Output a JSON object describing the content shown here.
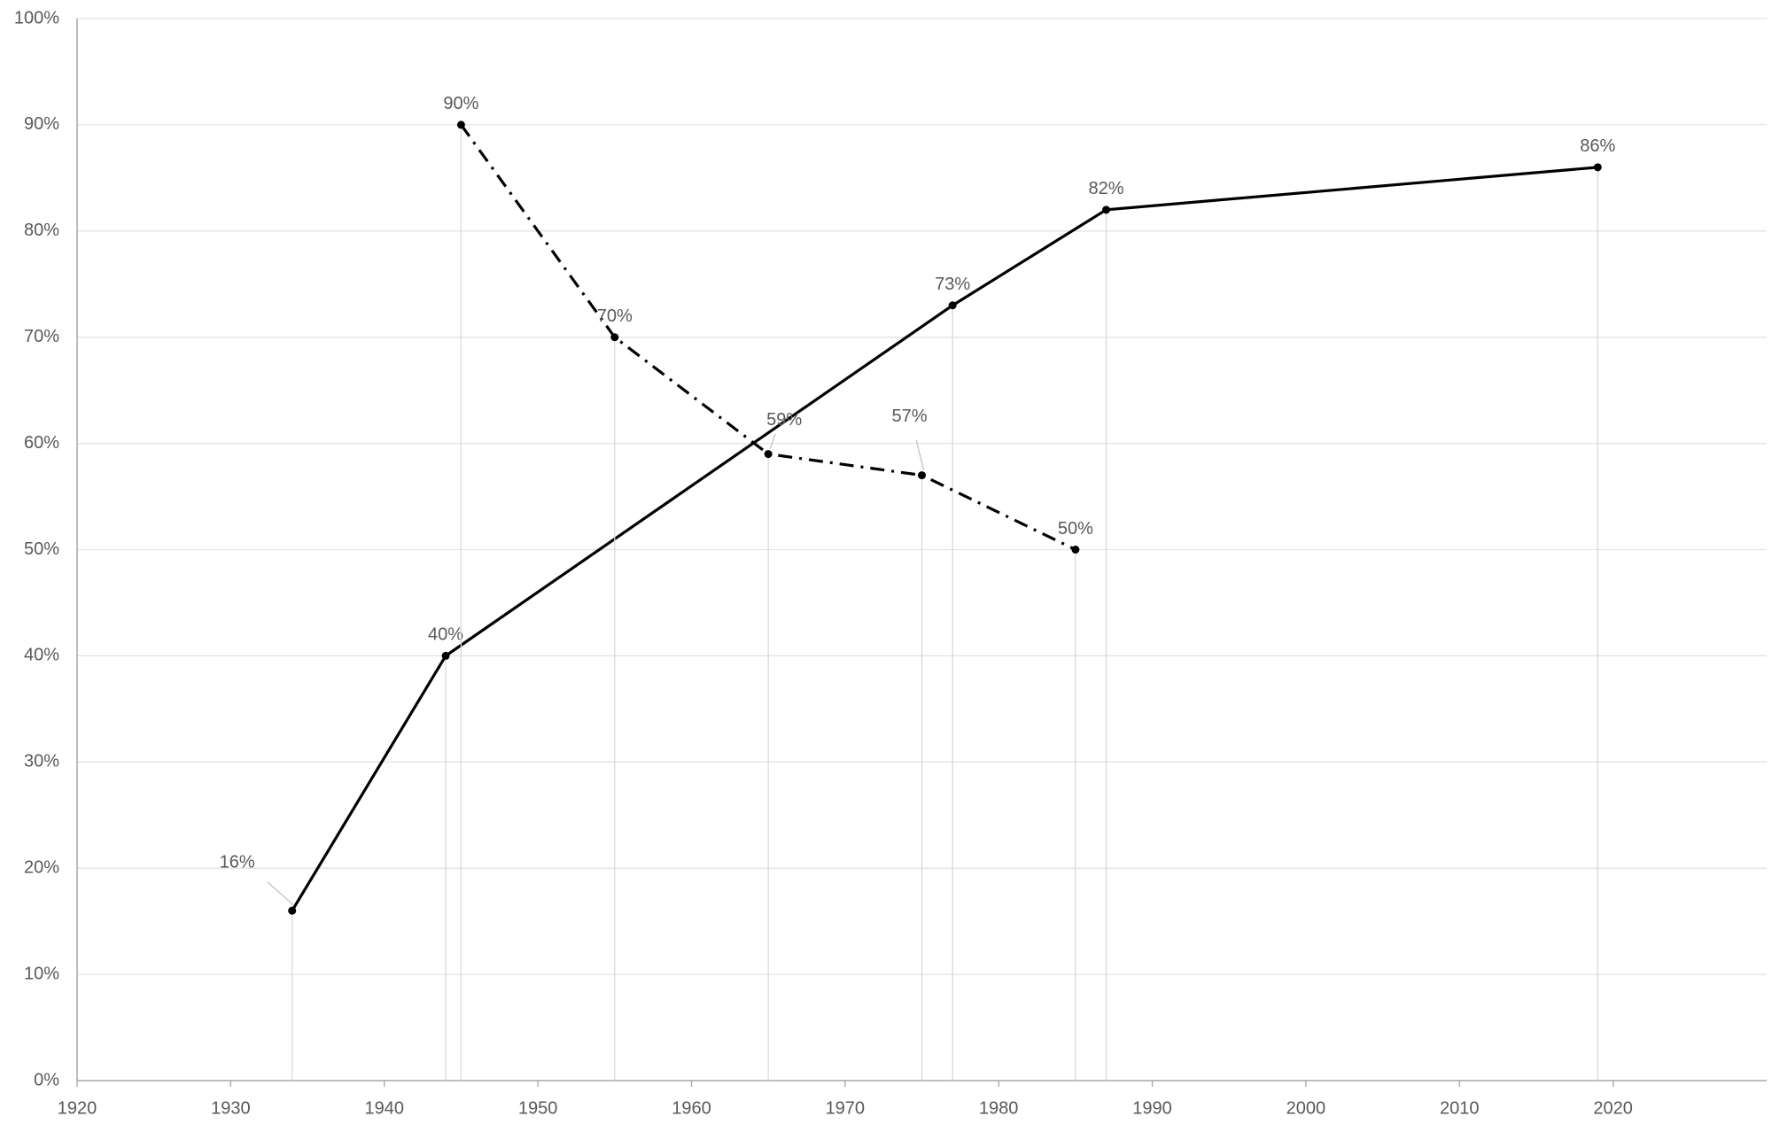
{
  "chart_data": {
    "type": "line",
    "series": [
      {
        "color": "#000000",
        "line_style": "solid",
        "x": [
          1934,
          1944,
          1977,
          1987,
          2019
        ],
        "values": [
          16,
          40,
          73,
          82,
          86
        ],
        "value_labels": [
          "16%",
          "40%",
          "73%",
          "82%",
          "86%"
        ]
      },
      {
        "color": "#000000",
        "line_style": "dash-dot",
        "x": [
          1945,
          1955,
          1965,
          1975,
          1985
        ],
        "values": [
          90,
          70,
          59,
          57,
          50
        ],
        "value_labels": [
          "90%",
          "70%",
          "59%",
          "57%",
          "50%"
        ]
      }
    ],
    "xlim": [
      1920,
      2030
    ],
    "xticks": [
      1920,
      1930,
      1940,
      1950,
      1960,
      1970,
      1980,
      1990,
      2000,
      2010,
      2020
    ],
    "ylim": [
      0,
      100
    ],
    "yticks": [
      {
        "value": 0,
        "label": "0%"
      },
      {
        "value": 10,
        "label": "10%"
      },
      {
        "value": 20,
        "label": "20%"
      },
      {
        "value": 30,
        "label": "30%"
      },
      {
        "value": 40,
        "label": "40%"
      },
      {
        "value": 50,
        "label": "50%"
      },
      {
        "value": 60,
        "label": "60%"
      },
      {
        "value": 70,
        "label": "70%"
      },
      {
        "value": 80,
        "label": "80%"
      },
      {
        "value": 90,
        "label": "90%"
      },
      {
        "value": 100,
        "label": "100%"
      }
    ],
    "grid": true,
    "drop_lines": true
  }
}
